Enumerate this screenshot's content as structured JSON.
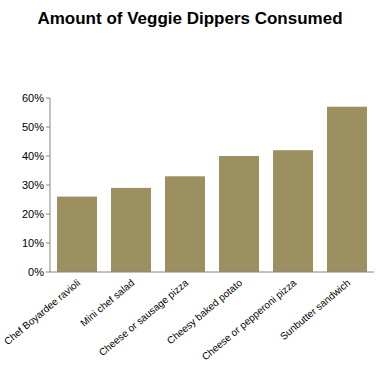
{
  "chart_data": {
    "type": "bar",
    "title": "Amount of Veggie Dippers Consumed",
    "categories": [
      "Chef Boyardee ravioli",
      "Mini chef salad",
      "Cheese or sausage pizza",
      "Cheesy baked potato",
      "Cheese or pepperoni pizza",
      "Sunbutter sandwich"
    ],
    "values": [
      26,
      29,
      33,
      40,
      42,
      57
    ],
    "color": "#9c9060",
    "ylim": [
      0,
      60
    ],
    "yticks": [
      {
        "value": 0,
        "label": "0%"
      },
      {
        "value": 10,
        "label": "10%"
      },
      {
        "value": 20,
        "label": "20%"
      },
      {
        "value": 30,
        "label": "30%"
      },
      {
        "value": 40,
        "label": "40%"
      },
      {
        "value": 50,
        "label": "50%"
      },
      {
        "value": 60,
        "label": "60%"
      }
    ],
    "grid": false
  }
}
